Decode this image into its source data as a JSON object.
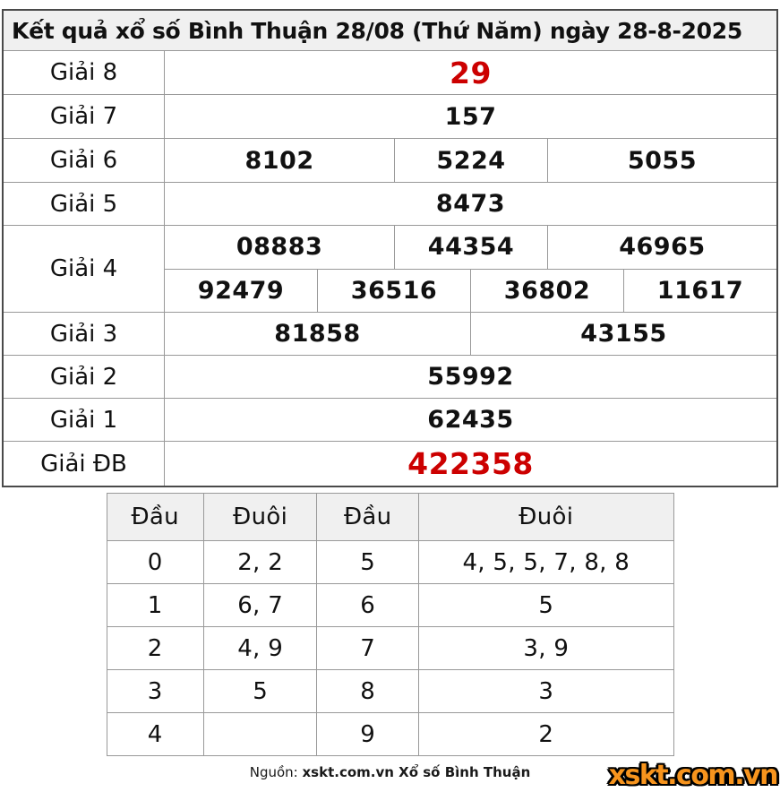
{
  "title": "Kết quả xổ số Bình Thuận 28/08 (Thứ Năm) ngày 28-8-2025",
  "colors": {
    "highlight_red": "#cc0000",
    "header_bg": "#f0f0f0",
    "border_gray": "#999999",
    "logo_orange": "#f7941d"
  },
  "prize_table": {
    "rows": [
      {
        "label": "Giải 8",
        "values": [
          "29"
        ],
        "highlight": true
      },
      {
        "label": "Giải 7",
        "values": [
          "157"
        ]
      },
      {
        "label": "Giải 6",
        "values": [
          "8102",
          "5224",
          "5055"
        ]
      },
      {
        "label": "Giải 5",
        "values": [
          "8473"
        ]
      },
      {
        "label": "Giải 4",
        "values_row1": [
          "08883",
          "44354",
          "46965"
        ],
        "values_row2": [
          "92479",
          "36516",
          "36802",
          "11617"
        ]
      },
      {
        "label": "Giải 3",
        "values": [
          "81858",
          "43155"
        ]
      },
      {
        "label": "Giải 2",
        "values": [
          "55992"
        ]
      },
      {
        "label": "Giải 1",
        "values": [
          "62435"
        ]
      },
      {
        "label": "Giải ĐB",
        "values": [
          "422358"
        ],
        "highlight": true
      }
    ]
  },
  "head_tail_table": {
    "headers": [
      "Đầu",
      "Đuôi",
      "Đầu",
      "Đuôi"
    ],
    "rows": [
      [
        "0",
        "2, 2",
        "5",
        "4, 5, 5, 7, 8, 8"
      ],
      [
        "1",
        "6, 7",
        "6",
        "5"
      ],
      [
        "2",
        "4, 9",
        "7",
        "3, 9"
      ],
      [
        "3",
        "5",
        "8",
        "3"
      ],
      [
        "4",
        "",
        "9",
        "2"
      ]
    ]
  },
  "footer": {
    "source_label": "Nguồn: ",
    "source_text": "xskt.com.vn Xổ số Bình Thuận",
    "logo_text": "xskt.com.vn"
  }
}
